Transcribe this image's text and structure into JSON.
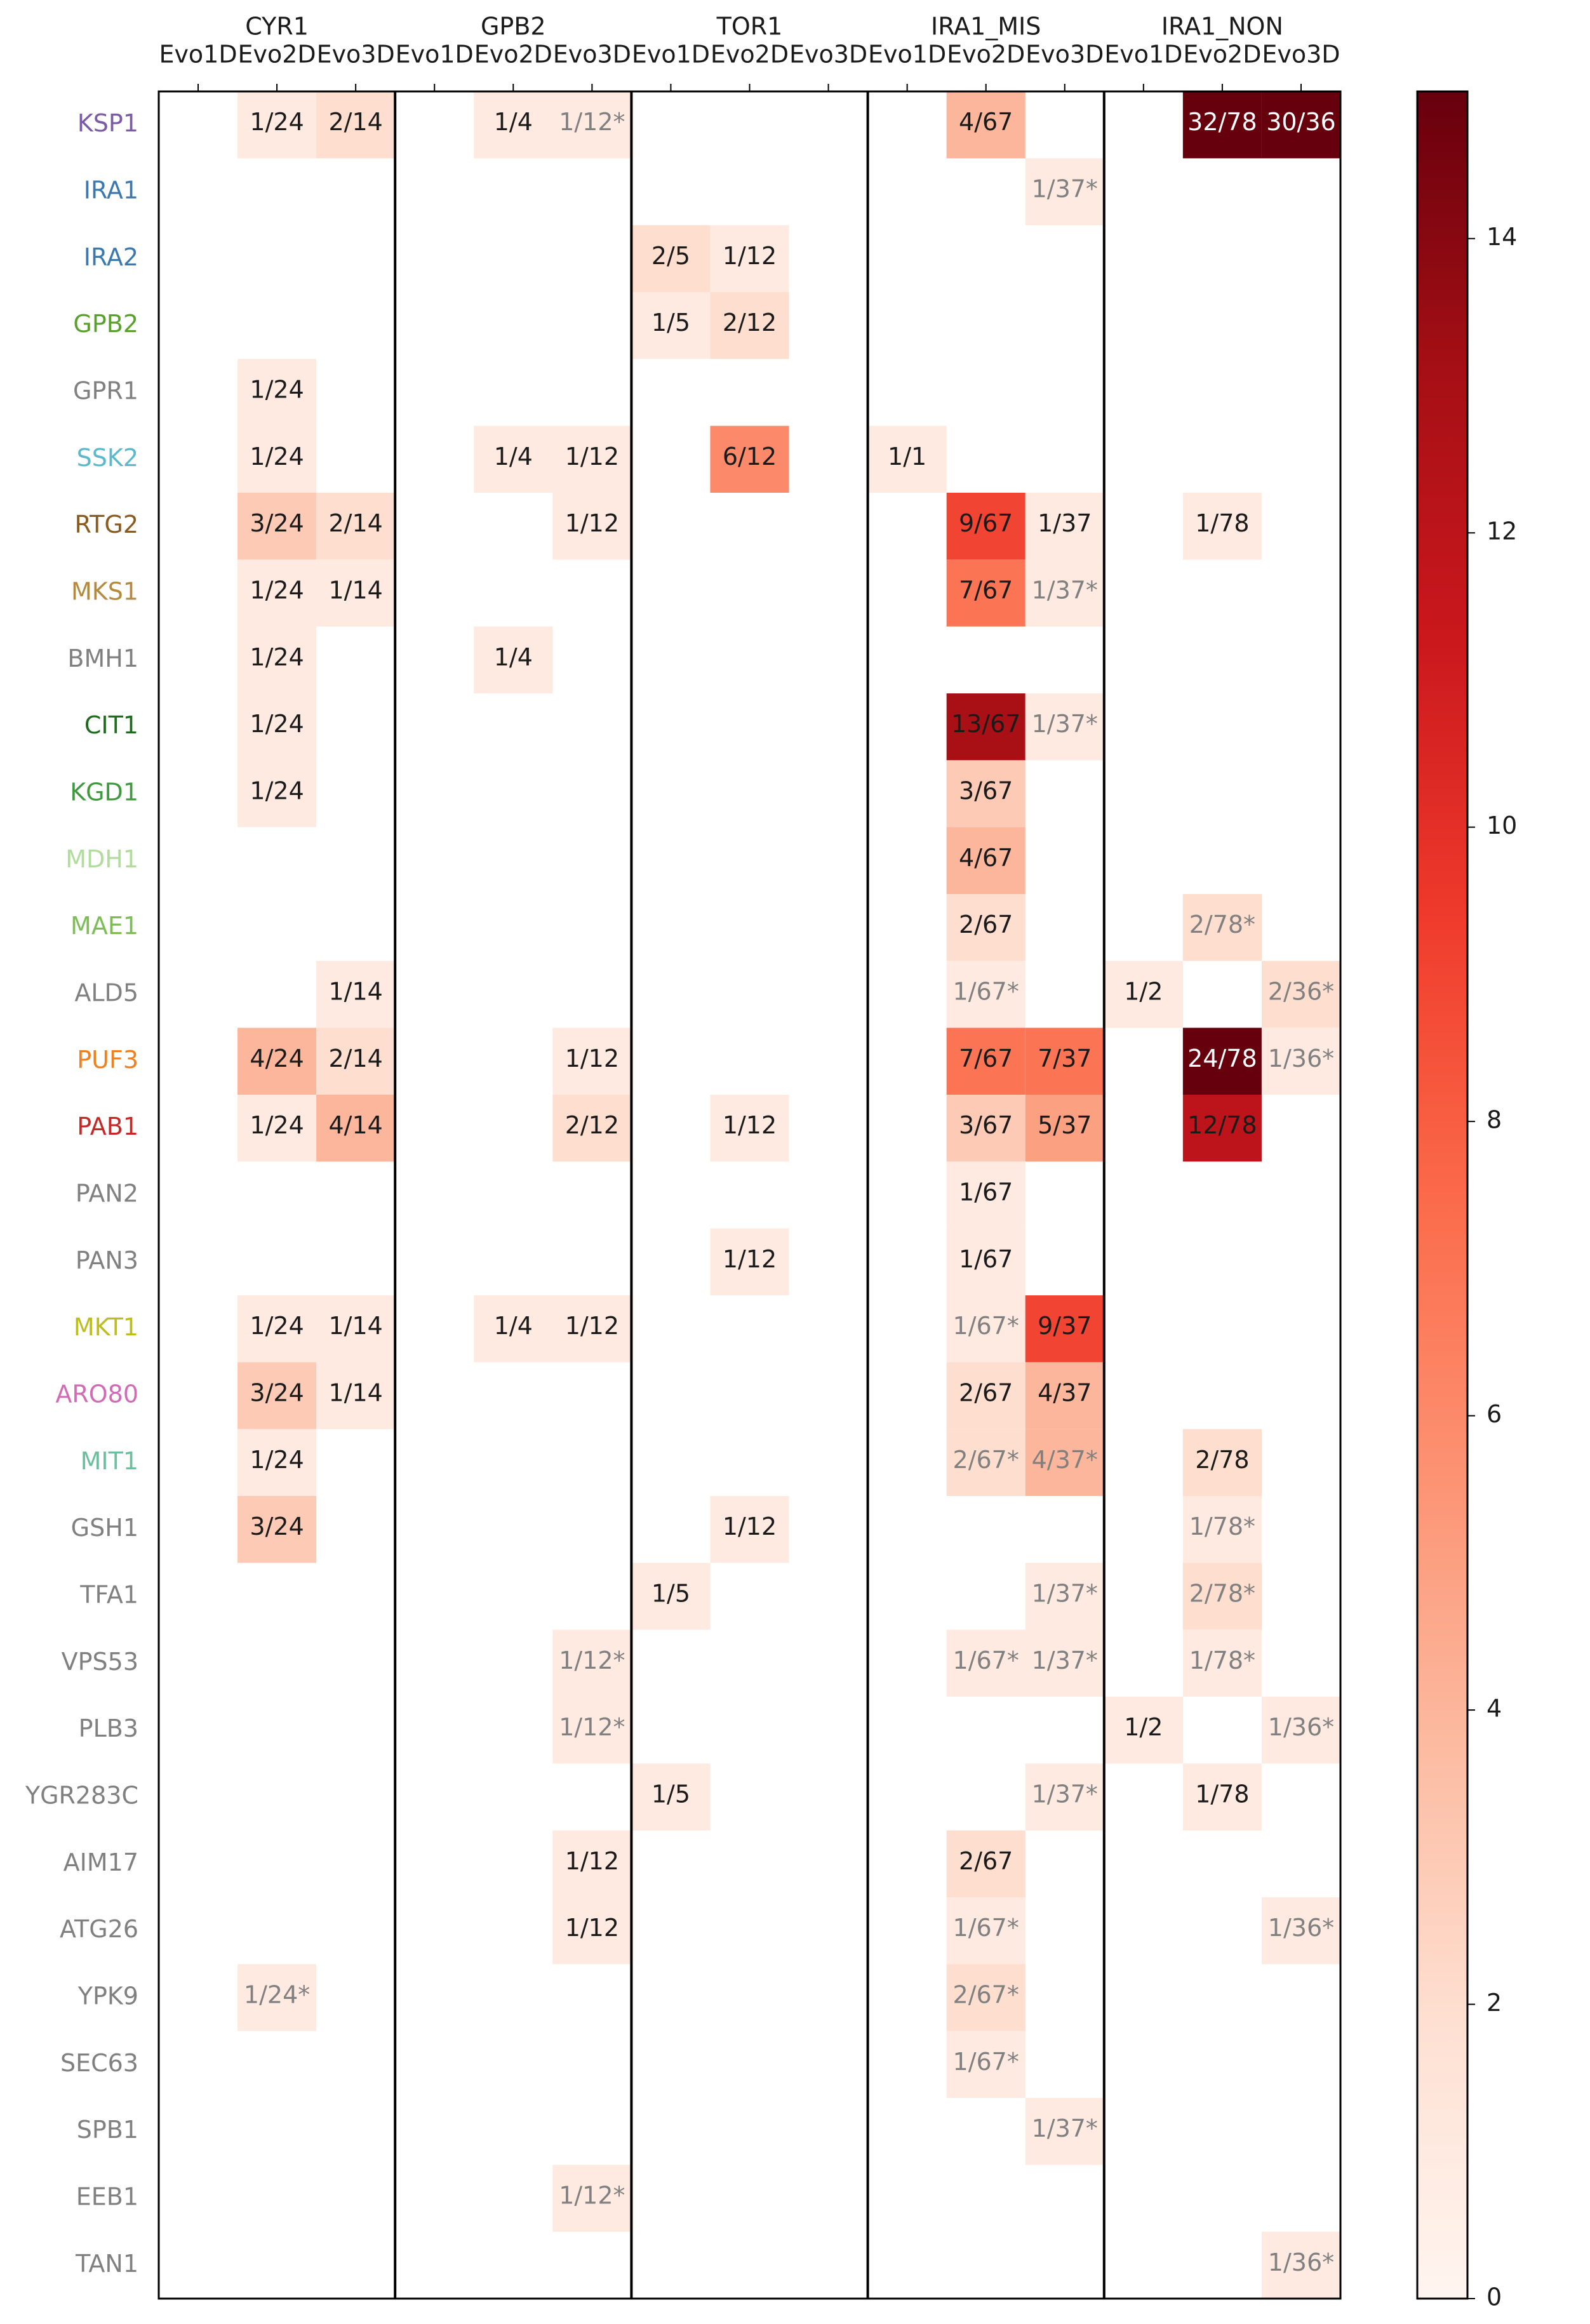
{
  "chart_data": {
    "type": "heatmap",
    "group_labels": [
      "CYR1",
      "GPB2",
      "TOR1",
      "IRA1_MIS",
      "IRA1_NON"
    ],
    "column_labels": [
      "Evo1D",
      "Evo2D",
      "Evo3D",
      "Evo1D",
      "Evo2D",
      "Evo3D",
      "Evo1D",
      "Evo2D",
      "Evo3D",
      "Evo1D",
      "Evo2D",
      "Evo3D",
      "Evo1D",
      "Evo2D",
      "Evo3D"
    ],
    "rows": [
      {
        "gene": "KSP1",
        "color": "#7b5aa6"
      },
      {
        "gene": "IRA1",
        "color": "#3a78b0"
      },
      {
        "gene": "IRA2",
        "color": "#3a78b0"
      },
      {
        "gene": "GPB2",
        "color": "#5aa02c"
      },
      {
        "gene": "GPR1",
        "color": "#808080"
      },
      {
        "gene": "SSK2",
        "color": "#5ab9cb"
      },
      {
        "gene": "RTG2",
        "color": "#8b5a1e"
      },
      {
        "gene": "MKS1",
        "color": "#b58a3c"
      },
      {
        "gene": "BMH1",
        "color": "#808080"
      },
      {
        "gene": "CIT1",
        "color": "#1e6b1e"
      },
      {
        "gene": "KGD1",
        "color": "#3f9a3f"
      },
      {
        "gene": "MDH1",
        "color": "#b0dc9c"
      },
      {
        "gene": "MAE1",
        "color": "#7dbd56"
      },
      {
        "gene": "ALD5",
        "color": "#808080"
      },
      {
        "gene": "PUF3",
        "color": "#f07f1e"
      },
      {
        "gene": "PAB1",
        "color": "#c62828"
      },
      {
        "gene": "PAN2",
        "color": "#808080"
      },
      {
        "gene": "PAN3",
        "color": "#808080"
      },
      {
        "gene": "MKT1",
        "color": "#bdbd1e"
      },
      {
        "gene": "ARO80",
        "color": "#d36ab6"
      },
      {
        "gene": "MIT1",
        "color": "#6bbf9c"
      },
      {
        "gene": "GSH1",
        "color": "#808080"
      },
      {
        "gene": "TFA1",
        "color": "#808080"
      },
      {
        "gene": "VPS53",
        "color": "#808080"
      },
      {
        "gene": "PLB3",
        "color": "#808080"
      },
      {
        "gene": "YGR283C",
        "color": "#808080"
      },
      {
        "gene": "AIM17",
        "color": "#808080"
      },
      {
        "gene": "ATG26",
        "color": "#808080"
      },
      {
        "gene": "YPK9",
        "color": "#808080"
      },
      {
        "gene": "SEC63",
        "color": "#808080"
      },
      {
        "gene": "SPB1",
        "color": "#808080"
      },
      {
        "gene": "EEB1",
        "color": "#808080"
      },
      {
        "gene": "TAN1",
        "color": "#808080"
      }
    ],
    "cells": [
      {
        "row": 0,
        "col": 1,
        "label": "1/24",
        "value": 1
      },
      {
        "row": 0,
        "col": 2,
        "label": "2/14",
        "value": 2
      },
      {
        "row": 0,
        "col": 4,
        "label": "1/4",
        "value": 1
      },
      {
        "row": 0,
        "col": 5,
        "label": "1/12*",
        "value": 1,
        "starred": true
      },
      {
        "row": 0,
        "col": 10,
        "label": "4/67",
        "value": 4
      },
      {
        "row": 0,
        "col": 13,
        "label": "32/78",
        "value": 32
      },
      {
        "row": 0,
        "col": 14,
        "label": "30/36",
        "value": 30
      },
      {
        "row": 1,
        "col": 11,
        "label": "1/37*",
        "value": 1,
        "starred": true
      },
      {
        "row": 2,
        "col": 6,
        "label": "2/5",
        "value": 2
      },
      {
        "row": 2,
        "col": 7,
        "label": "1/12",
        "value": 1
      },
      {
        "row": 3,
        "col": 6,
        "label": "1/5",
        "value": 1
      },
      {
        "row": 3,
        "col": 7,
        "label": "2/12",
        "value": 2
      },
      {
        "row": 4,
        "col": 1,
        "label": "1/24",
        "value": 1
      },
      {
        "row": 5,
        "col": 1,
        "label": "1/24",
        "value": 1
      },
      {
        "row": 5,
        "col": 4,
        "label": "1/4",
        "value": 1
      },
      {
        "row": 5,
        "col": 5,
        "label": "1/12",
        "value": 1
      },
      {
        "row": 5,
        "col": 7,
        "label": "6/12",
        "value": 6
      },
      {
        "row": 5,
        "col": 9,
        "label": "1/1",
        "value": 1
      },
      {
        "row": 6,
        "col": 1,
        "label": "3/24",
        "value": 3
      },
      {
        "row": 6,
        "col": 2,
        "label": "2/14",
        "value": 2
      },
      {
        "row": 6,
        "col": 5,
        "label": "1/12",
        "value": 1
      },
      {
        "row": 6,
        "col": 10,
        "label": "9/67",
        "value": 9
      },
      {
        "row": 6,
        "col": 11,
        "label": "1/37",
        "value": 1
      },
      {
        "row": 6,
        "col": 13,
        "label": "1/78",
        "value": 1
      },
      {
        "row": 7,
        "col": 1,
        "label": "1/24",
        "value": 1
      },
      {
        "row": 7,
        "col": 2,
        "label": "1/14",
        "value": 1
      },
      {
        "row": 7,
        "col": 10,
        "label": "7/67",
        "value": 7
      },
      {
        "row": 7,
        "col": 11,
        "label": "1/37*",
        "value": 1,
        "starred": true
      },
      {
        "row": 8,
        "col": 1,
        "label": "1/24",
        "value": 1
      },
      {
        "row": 8,
        "col": 4,
        "label": "1/4",
        "value": 1
      },
      {
        "row": 9,
        "col": 1,
        "label": "1/24",
        "value": 1
      },
      {
        "row": 9,
        "col": 10,
        "label": "13/67",
        "value": 13
      },
      {
        "row": 9,
        "col": 11,
        "label": "1/37*",
        "value": 1,
        "starred": true
      },
      {
        "row": 10,
        "col": 1,
        "label": "1/24",
        "value": 1
      },
      {
        "row": 10,
        "col": 10,
        "label": "3/67",
        "value": 3
      },
      {
        "row": 11,
        "col": 10,
        "label": "4/67",
        "value": 4
      },
      {
        "row": 12,
        "col": 10,
        "label": "2/67",
        "value": 2
      },
      {
        "row": 12,
        "col": 13,
        "label": "2/78*",
        "value": 2,
        "starred": true
      },
      {
        "row": 13,
        "col": 2,
        "label": "1/14",
        "value": 1
      },
      {
        "row": 13,
        "col": 10,
        "label": "1/67*",
        "value": 1,
        "starred": true
      },
      {
        "row": 13,
        "col": 12,
        "label": "1/2",
        "value": 1
      },
      {
        "row": 13,
        "col": 14,
        "label": "2/36*",
        "value": 2,
        "starred": true
      },
      {
        "row": 14,
        "col": 1,
        "label": "4/24",
        "value": 4
      },
      {
        "row": 14,
        "col": 2,
        "label": "2/14",
        "value": 2
      },
      {
        "row": 14,
        "col": 5,
        "label": "1/12",
        "value": 1
      },
      {
        "row": 14,
        "col": 10,
        "label": "7/67",
        "value": 7
      },
      {
        "row": 14,
        "col": 11,
        "label": "7/37",
        "value": 7
      },
      {
        "row": 14,
        "col": 13,
        "label": "24/78",
        "value": 24
      },
      {
        "row": 14,
        "col": 14,
        "label": "1/36*",
        "value": 1,
        "starred": true
      },
      {
        "row": 15,
        "col": 1,
        "label": "1/24",
        "value": 1
      },
      {
        "row": 15,
        "col": 2,
        "label": "4/14",
        "value": 4
      },
      {
        "row": 15,
        "col": 5,
        "label": "2/12",
        "value": 2
      },
      {
        "row": 15,
        "col": 7,
        "label": "1/12",
        "value": 1
      },
      {
        "row": 15,
        "col": 10,
        "label": "3/67",
        "value": 3
      },
      {
        "row": 15,
        "col": 11,
        "label": "5/37",
        "value": 5
      },
      {
        "row": 15,
        "col": 13,
        "label": "12/78",
        "value": 12
      },
      {
        "row": 16,
        "col": 10,
        "label": "1/67",
        "value": 1
      },
      {
        "row": 17,
        "col": 7,
        "label": "1/12",
        "value": 1
      },
      {
        "row": 17,
        "col": 10,
        "label": "1/67",
        "value": 1
      },
      {
        "row": 18,
        "col": 1,
        "label": "1/24",
        "value": 1
      },
      {
        "row": 18,
        "col": 2,
        "label": "1/14",
        "value": 1
      },
      {
        "row": 18,
        "col": 4,
        "label": "1/4",
        "value": 1
      },
      {
        "row": 18,
        "col": 5,
        "label": "1/12",
        "value": 1
      },
      {
        "row": 18,
        "col": 10,
        "label": "1/67*",
        "value": 1,
        "starred": true
      },
      {
        "row": 18,
        "col": 11,
        "label": "9/37",
        "value": 9
      },
      {
        "row": 19,
        "col": 1,
        "label": "3/24",
        "value": 3
      },
      {
        "row": 19,
        "col": 2,
        "label": "1/14",
        "value": 1
      },
      {
        "row": 19,
        "col": 10,
        "label": "2/67",
        "value": 2
      },
      {
        "row": 19,
        "col": 11,
        "label": "4/37",
        "value": 4
      },
      {
        "row": 20,
        "col": 1,
        "label": "1/24",
        "value": 1
      },
      {
        "row": 20,
        "col": 10,
        "label": "2/67*",
        "value": 2,
        "starred": true
      },
      {
        "row": 20,
        "col": 11,
        "label": "4/37*",
        "value": 4,
        "starred": true
      },
      {
        "row": 20,
        "col": 13,
        "label": "2/78",
        "value": 2
      },
      {
        "row": 21,
        "col": 1,
        "label": "3/24",
        "value": 3
      },
      {
        "row": 21,
        "col": 7,
        "label": "1/12",
        "value": 1
      },
      {
        "row": 21,
        "col": 13,
        "label": "1/78*",
        "value": 1,
        "starred": true
      },
      {
        "row": 22,
        "col": 6,
        "label": "1/5",
        "value": 1
      },
      {
        "row": 22,
        "col": 11,
        "label": "1/37*",
        "value": 1,
        "starred": true
      },
      {
        "row": 22,
        "col": 13,
        "label": "2/78*",
        "value": 2,
        "starred": true
      },
      {
        "row": 23,
        "col": 5,
        "label": "1/12*",
        "value": 1,
        "starred": true
      },
      {
        "row": 23,
        "col": 10,
        "label": "1/67*",
        "value": 1,
        "starred": true
      },
      {
        "row": 23,
        "col": 11,
        "label": "1/37*",
        "value": 1,
        "starred": true
      },
      {
        "row": 23,
        "col": 13,
        "label": "1/78*",
        "value": 1,
        "starred": true
      },
      {
        "row": 24,
        "col": 5,
        "label": "1/12*",
        "value": 1,
        "starred": true
      },
      {
        "row": 24,
        "col": 12,
        "label": "1/2",
        "value": 1
      },
      {
        "row": 24,
        "col": 14,
        "label": "1/36*",
        "value": 1,
        "starred": true
      },
      {
        "row": 25,
        "col": 6,
        "label": "1/5",
        "value": 1
      },
      {
        "row": 25,
        "col": 11,
        "label": "1/37*",
        "value": 1,
        "starred": true
      },
      {
        "row": 25,
        "col": 13,
        "label": "1/78",
        "value": 1
      },
      {
        "row": 26,
        "col": 5,
        "label": "1/12",
        "value": 1
      },
      {
        "row": 26,
        "col": 10,
        "label": "2/67",
        "value": 2
      },
      {
        "row": 27,
        "col": 5,
        "label": "1/12",
        "value": 1
      },
      {
        "row": 27,
        "col": 10,
        "label": "1/67*",
        "value": 1,
        "starred": true
      },
      {
        "row": 27,
        "col": 14,
        "label": "1/36*",
        "value": 1,
        "starred": true
      },
      {
        "row": 28,
        "col": 1,
        "label": "1/24*",
        "value": 1,
        "starred": true
      },
      {
        "row": 28,
        "col": 10,
        "label": "2/67*",
        "value": 2,
        "starred": true
      },
      {
        "row": 29,
        "col": 10,
        "label": "1/67*",
        "value": 1,
        "starred": true
      },
      {
        "row": 30,
        "col": 11,
        "label": "1/37*",
        "value": 1,
        "starred": true
      },
      {
        "row": 31,
        "col": 5,
        "label": "1/12*",
        "value": 1,
        "starred": true
      },
      {
        "row": 32,
        "col": 14,
        "label": "1/36*",
        "value": 1,
        "starred": true
      }
    ],
    "colorbar": {
      "vmin": 0,
      "vmax": 15,
      "ticks": [
        "0",
        "2",
        "4",
        "6",
        "8",
        "10",
        "12",
        "14"
      ],
      "colormap": "Reds",
      "stops": [
        "#fff5f0",
        "#fee0d2",
        "#fcbba1",
        "#fc9272",
        "#fb6a4a",
        "#ef3b2c",
        "#cb181d",
        "#a50f15",
        "#67000d"
      ]
    },
    "starred_text_color": "#808080",
    "grid": false,
    "legend": "right"
  }
}
